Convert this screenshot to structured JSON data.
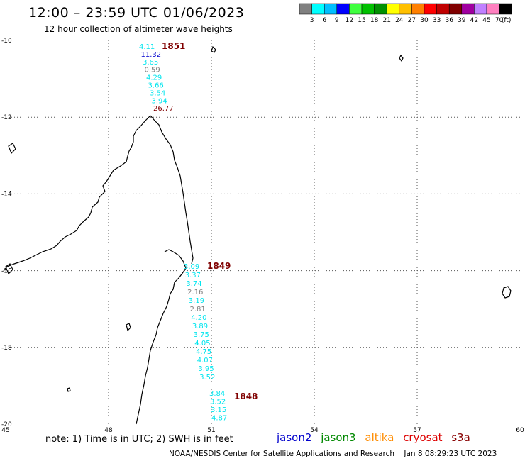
{
  "title": "12:00 – 23:59 UTC 01/06/2023",
  "subtitle": "12 hour collection of altimeter wave heights",
  "legend": {
    "colors": [
      "#808080",
      "#00ffff",
      "#00bfff",
      "#0000ff",
      "#40ff40",
      "#00c000",
      "#009000",
      "#ffff00",
      "#ffc000",
      "#ff8000",
      "#ff0000",
      "#c00000",
      "#800000",
      "#a000a0",
      "#c080ff",
      "#ff80c0",
      "#000000"
    ],
    "labels": [
      "3",
      "6",
      "9",
      "12",
      "15",
      "18",
      "21",
      "24",
      "27",
      "30",
      "33",
      "36",
      "39",
      "42",
      "45",
      "70"
    ],
    "unit": "(ft)"
  },
  "axes": {
    "lon_labels": [
      "45",
      "48",
      "51",
      "54",
      "57",
      "60"
    ],
    "lat_labels": [
      "-10",
      "-12",
      "-14",
      "-16",
      "-18",
      "-20"
    ]
  },
  "passes": [
    {
      "time_label": "1851",
      "points": [
        {
          "v": "4.11",
          "c": "#00e5ee"
        },
        {
          "v": "11.32",
          "c": "#0000cc"
        },
        {
          "v": "3.65",
          "c": "#00e5ee"
        },
        {
          "v": "0.59",
          "c": "#808080"
        },
        {
          "v": "4.29",
          "c": "#00e5ee"
        },
        {
          "v": "3.66",
          "c": "#00e5ee"
        },
        {
          "v": "3.54",
          "c": "#00e5ee"
        },
        {
          "v": "3.94",
          "c": "#00e5ee"
        },
        {
          "v": "26.77",
          "c": "#800000"
        }
      ]
    },
    {
      "time_label": "1849",
      "points": [
        {
          "v": "3.09",
          "c": "#00e5ee"
        },
        {
          "v": "3.37",
          "c": "#00e5ee"
        },
        {
          "v": "3.74",
          "c": "#00e5ee"
        },
        {
          "v": "2.16",
          "c": "#808080"
        },
        {
          "v": "3.19",
          "c": "#00e5ee"
        },
        {
          "v": "2.81",
          "c": "#808080"
        },
        {
          "v": "4.20",
          "c": "#00e5ee"
        },
        {
          "v": "3.89",
          "c": "#00e5ee"
        },
        {
          "v": "3.75",
          "c": "#00e5ee"
        },
        {
          "v": "4.05",
          "c": "#00e5ee"
        },
        {
          "v": "4.75",
          "c": "#00e5ee"
        },
        {
          "v": "4.07",
          "c": "#00e5ee"
        },
        {
          "v": "3.95",
          "c": "#00e5ee"
        },
        {
          "v": "3.52",
          "c": "#00e5ee"
        }
      ]
    },
    {
      "time_label": "1848",
      "points": [
        {
          "v": "3.84",
          "c": "#00e5ee"
        },
        {
          "v": "3.52",
          "c": "#00e5ee"
        },
        {
          "v": "3.15",
          "c": "#00e5ee"
        },
        {
          "v": "4.87",
          "c": "#00e5ee"
        }
      ]
    }
  ],
  "time_label_color": "#800000",
  "note": "note: 1) Time is in UTC; 2) SWH is in feet",
  "satellites": [
    {
      "name": "jason2",
      "color": "#0000cc"
    },
    {
      "name": "jason3",
      "color": "#008800"
    },
    {
      "name": "altika",
      "color": "#ff8c00"
    },
    {
      "name": "cryosat",
      "color": "#dd0000"
    },
    {
      "name": "s3a",
      "color": "#880000"
    }
  ],
  "credit": "NOAA/NESDIS Center for Satellite Applications and Research",
  "timestamp": "Jan  8 08:29:23 UTC 2023"
}
